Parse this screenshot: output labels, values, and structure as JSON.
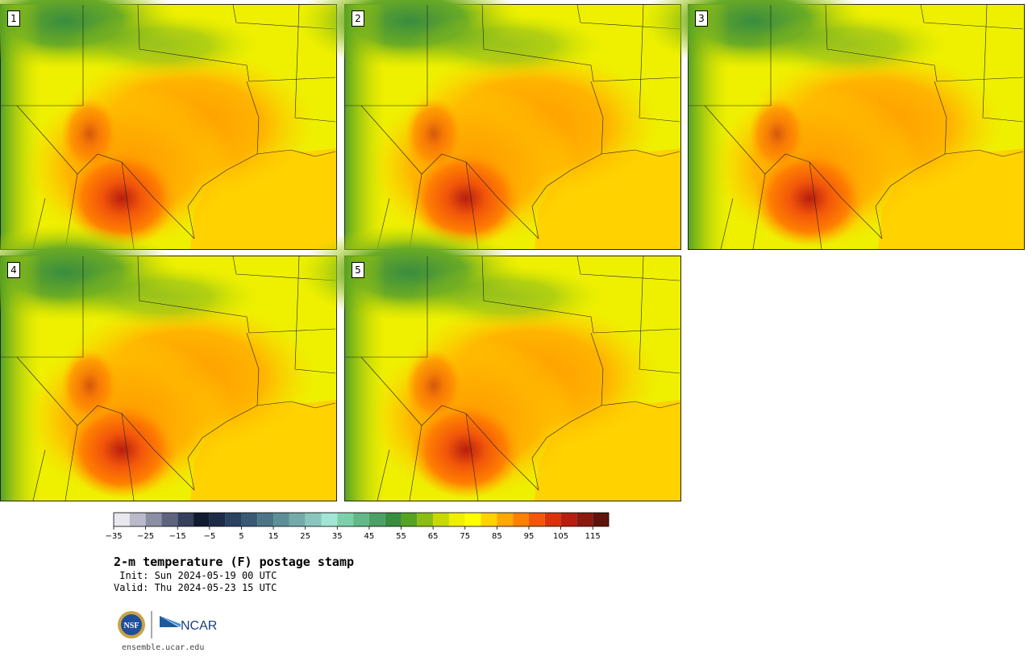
{
  "stamps": [
    {
      "label": "1"
    },
    {
      "label": "2"
    },
    {
      "label": "3"
    },
    {
      "label": "4"
    },
    {
      "label": "5"
    }
  ],
  "colorbar": {
    "bounds": [
      -35,
      -30,
      -25,
      -20,
      -15,
      -10,
      -5,
      0,
      5,
      10,
      15,
      20,
      25,
      30,
      35,
      40,
      45,
      50,
      55,
      60,
      65,
      70,
      75,
      80,
      85,
      90,
      95,
      100,
      105,
      110,
      115,
      120
    ],
    "tick_labels": [
      "−35",
      "−25",
      "−15",
      "−5",
      "5",
      "15",
      "25",
      "35",
      "45",
      "55",
      "65",
      "75",
      "85",
      "95",
      "105",
      "115"
    ],
    "colors": [
      "#e8e8ee",
      "#b9b9c9",
      "#8c8ea3",
      "#5f647e",
      "#36405c",
      "#101a30",
      "#1c2b47",
      "#2a4260",
      "#3a5a74",
      "#4c7486",
      "#5e8f98",
      "#73aba9",
      "#8ac6be",
      "#a3e5d5",
      "#7ed0ac",
      "#62b888",
      "#4ca065",
      "#3a8d3f",
      "#56a324",
      "#8bbd12",
      "#c7d900",
      "#eef000",
      "#ffff00",
      "#ffd200",
      "#ffa800",
      "#ff8000",
      "#f2560a",
      "#d9320d",
      "#b81e0f",
      "#8c1810",
      "#5e140c"
    ]
  },
  "title": "2-m temperature (F) postage stamp",
  "init_line": " Init: Sun 2024-05-19 00 UTC",
  "valid_line": "Valid: Thu 2024-05-23 15 UTC",
  "logos": {
    "nsf": "NSF",
    "ncar": "NCAR"
  },
  "site": "ensemble.ucar.edu"
}
